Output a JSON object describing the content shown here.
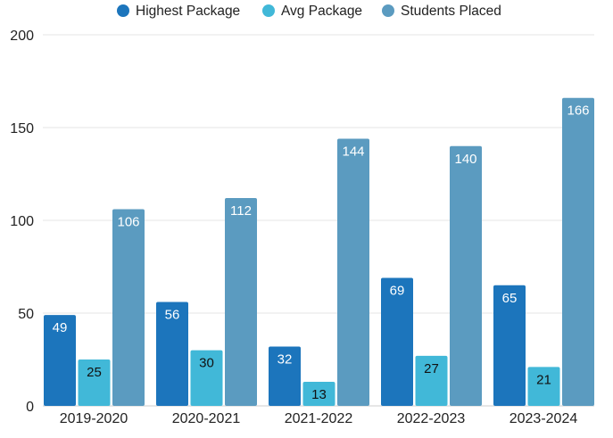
{
  "chart_data": {
    "type": "bar",
    "title": "",
    "xlabel": "",
    "ylabel": "",
    "ylim": [
      0,
      200
    ],
    "yticks": [
      0,
      50,
      100,
      150,
      200
    ],
    "grid": true,
    "legend_position": "top-center",
    "categories": [
      "2019-2020",
      "2020-2021",
      "2021-2022",
      "2022-2023",
      "2023-2024"
    ],
    "series": [
      {
        "name": "Highest Package",
        "color": "#1c75bc",
        "label_color": "#ffffff",
        "values": [
          49,
          56,
          32,
          69,
          65
        ]
      },
      {
        "name": "Avg Package",
        "color": "#41b8d8",
        "label_color": "#111111",
        "values": [
          25,
          30,
          13,
          27,
          21
        ]
      },
      {
        "name": "Students Placed",
        "color": "#5b9bc0",
        "label_color": "#ffffff",
        "values": [
          106,
          112,
          144,
          140,
          166
        ]
      }
    ]
  }
}
